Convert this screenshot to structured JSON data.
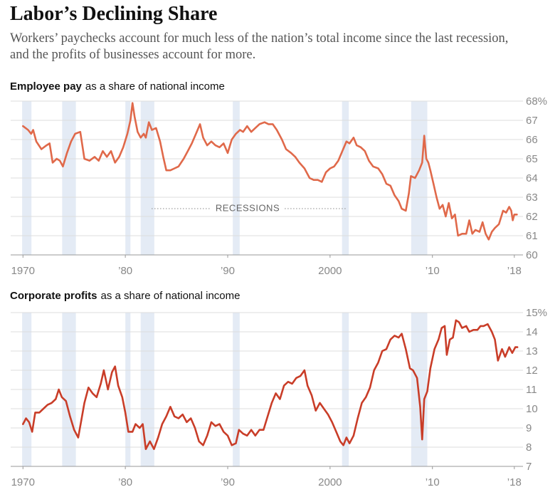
{
  "title": "Labor’s Declining Share",
  "subtitle": "Workers’ paychecks account for much less of the nation’s total income since the last recession, and the profits of businesses account for more.",
  "chart_data": [
    {
      "type": "line",
      "title_bold": "Employee pay",
      "title": "as a share of national income",
      "color": "#e0694a",
      "grid": true,
      "annotation": "RECESSIONS",
      "xlim": [
        1968.8,
        2018.5
      ],
      "ylim": [
        60,
        68
      ],
      "xticks": [
        1970,
        {
          "value": 1980,
          "label": "’80"
        },
        {
          "value": 1990,
          "label": "’90"
        },
        2000,
        {
          "value": 2010,
          "label": "’10"
        },
        {
          "value": 2018,
          "label": "’18"
        }
      ],
      "yticks": [
        60,
        61,
        62,
        63,
        64,
        65,
        66,
        67,
        {
          "value": 68,
          "label": "68%"
        }
      ],
      "recessions": [
        [
          1969.92,
          1970.83
        ],
        [
          1973.83,
          1975.17
        ],
        [
          1980.0,
          1980.5
        ],
        [
          1981.5,
          1982.83
        ],
        [
          1990.5,
          1991.17
        ],
        [
          2001.17,
          2001.83
        ],
        [
          2007.92,
          2009.5
        ]
      ],
      "x": [
        1970.0,
        1970.5,
        1970.8,
        1971.0,
        1971.3,
        1971.8,
        1972.3,
        1972.6,
        1972.9,
        1973.3,
        1973.6,
        1973.9,
        1974.3,
        1974.7,
        1975.1,
        1975.6,
        1976.0,
        1976.5,
        1977.0,
        1977.4,
        1977.8,
        1978.2,
        1978.6,
        1979.0,
        1979.4,
        1979.8,
        1980.2,
        1980.5,
        1980.7,
        1980.9,
        1981.2,
        1981.5,
        1981.8,
        1982.0,
        1982.3,
        1982.6,
        1983.0,
        1983.4,
        1983.7,
        1984.0,
        1984.4,
        1984.8,
        1985.2,
        1985.7,
        1986.1,
        1986.5,
        1986.9,
        1987.3,
        1987.6,
        1988.0,
        1988.4,
        1988.8,
        1989.2,
        1989.6,
        1990.0,
        1990.4,
        1990.8,
        1991.2,
        1991.5,
        1991.9,
        1992.3,
        1992.7,
        1993.1,
        1993.6,
        1994.0,
        1994.4,
        1994.8,
        1995.3,
        1995.7,
        1996.2,
        1996.6,
        1997.0,
        1997.5,
        1998.0,
        1998.4,
        1998.8,
        1999.2,
        1999.6,
        2000.0,
        2000.4,
        2000.8,
        2001.2,
        2001.6,
        2001.9,
        2002.3,
        2002.6,
        2003.0,
        2003.4,
        2003.8,
        2004.2,
        2004.7,
        2005.1,
        2005.5,
        2005.9,
        2006.3,
        2006.7,
        2007.0,
        2007.4,
        2007.7,
        2007.9,
        2008.3,
        2008.7,
        2009.0,
        2009.2,
        2009.4,
        2009.6,
        2009.8,
        2010.1,
        2010.4,
        2010.7,
        2011.0,
        2011.3,
        2011.6,
        2011.9,
        2012.2,
        2012.5,
        2012.9,
        2013.3,
        2013.6,
        2013.9,
        2014.2,
        2014.6,
        2014.9,
        2015.2,
        2015.5,
        2015.8,
        2016.1,
        2016.5,
        2016.9,
        2017.2,
        2017.5,
        2017.7,
        2017.85,
        2018.0,
        2018.25
      ],
      "values": [
        66.7,
        66.5,
        66.3,
        66.5,
        65.9,
        65.5,
        65.7,
        65.8,
        64.8,
        65.0,
        64.9,
        64.6,
        65.3,
        65.9,
        66.3,
        66.4,
        65.0,
        64.9,
        65.1,
        64.9,
        65.4,
        65.1,
        65.4,
        64.8,
        65.1,
        65.6,
        66.3,
        67.0,
        67.9,
        67.2,
        66.4,
        66.1,
        66.3,
        66.1,
        66.9,
        66.5,
        66.6,
        65.9,
        65.1,
        64.4,
        64.4,
        64.5,
        64.6,
        65.0,
        65.4,
        65.8,
        66.3,
        66.8,
        66.1,
        65.7,
        65.9,
        65.7,
        65.6,
        65.8,
        65.3,
        66.0,
        66.3,
        66.5,
        66.4,
        66.7,
        66.4,
        66.6,
        66.8,
        66.9,
        66.8,
        66.8,
        66.5,
        66.0,
        65.5,
        65.3,
        65.1,
        64.8,
        64.5,
        64.0,
        63.9,
        63.9,
        63.8,
        64.3,
        64.5,
        64.6,
        64.9,
        65.4,
        65.9,
        65.8,
        66.1,
        65.7,
        65.6,
        65.4,
        64.9,
        64.6,
        64.5,
        64.2,
        63.7,
        63.6,
        63.1,
        62.8,
        62.4,
        62.3,
        63.2,
        64.1,
        64.0,
        64.4,
        64.8,
        66.2,
        65.0,
        64.8,
        64.4,
        63.7,
        63.0,
        62.4,
        62.6,
        62.0,
        62.7,
        61.9,
        62.1,
        61.0,
        61.1,
        61.1,
        61.8,
        61.1,
        61.3,
        61.2,
        61.7,
        61.1,
        60.8,
        61.2,
        61.4,
        61.6,
        62.3,
        62.2,
        62.5,
        62.3,
        61.8,
        62.1,
        62.1
      ]
    },
    {
      "type": "line",
      "title_bold": "Corporate profits",
      "title": "as a share of national income",
      "color": "#c93d28",
      "grid": true,
      "xlim": [
        1968.8,
        2018.5
      ],
      "ylim": [
        7,
        15
      ],
      "xticks": [
        1970,
        {
          "value": 1980,
          "label": "’80"
        },
        {
          "value": 1990,
          "label": "’90"
        },
        2000,
        {
          "value": 2010,
          "label": "’10"
        },
        {
          "value": 2018,
          "label": "’18"
        }
      ],
      "yticks": [
        7,
        8,
        9,
        10,
        11,
        12,
        13,
        14,
        {
          "value": 15,
          "label": "15%"
        }
      ],
      "recessions": [
        [
          1969.92,
          1970.83
        ],
        [
          1973.83,
          1975.17
        ],
        [
          1980.0,
          1980.5
        ],
        [
          1981.5,
          1982.83
        ],
        [
          1990.5,
          1991.17
        ],
        [
          2001.17,
          2001.83
        ],
        [
          2007.92,
          2009.5
        ]
      ],
      "x": [
        1970.0,
        1970.3,
        1970.6,
        1970.9,
        1971.2,
        1971.6,
        1972.0,
        1972.4,
        1972.8,
        1973.2,
        1973.5,
        1973.8,
        1974.2,
        1974.6,
        1975.0,
        1975.4,
        1975.7,
        1976.0,
        1976.4,
        1976.8,
        1977.2,
        1977.6,
        1977.9,
        1978.3,
        1978.7,
        1979.0,
        1979.3,
        1979.7,
        1980.0,
        1980.3,
        1980.7,
        1981.0,
        1981.4,
        1981.7,
        1982.0,
        1982.4,
        1982.8,
        1983.2,
        1983.6,
        1984.0,
        1984.4,
        1984.8,
        1985.2,
        1985.6,
        1986.0,
        1986.4,
        1986.8,
        1987.2,
        1987.6,
        1988.0,
        1988.4,
        1988.8,
        1989.2,
        1989.6,
        1990.0,
        1990.4,
        1990.8,
        1991.1,
        1991.5,
        1991.9,
        1992.3,
        1992.7,
        1993.1,
        1993.5,
        1993.9,
        1994.3,
        1994.7,
        1995.1,
        1995.5,
        1995.9,
        1996.3,
        1996.7,
        1997.1,
        1997.5,
        1997.8,
        1998.2,
        1998.6,
        1999.0,
        1999.4,
        1999.8,
        2000.2,
        2000.6,
        2001.0,
        2001.3,
        2001.6,
        2001.9,
        2002.3,
        2002.7,
        2003.1,
        2003.5,
        2003.9,
        2004.3,
        2004.7,
        2005.1,
        2005.5,
        2005.9,
        2006.3,
        2006.7,
        2007.0,
        2007.4,
        2007.8,
        2008.1,
        2008.5,
        2008.8,
        2009.0,
        2009.2,
        2009.5,
        2009.8,
        2010.2,
        2010.6,
        2010.9,
        2011.2,
        2011.4,
        2011.7,
        2012.0,
        2012.3,
        2012.6,
        2012.9,
        2013.3,
        2013.6,
        2014.0,
        2014.4,
        2014.7,
        2015.0,
        2015.4,
        2015.8,
        2016.1,
        2016.4,
        2016.8,
        2017.1,
        2017.5,
        2017.8,
        2018.1,
        2018.3
      ],
      "values": [
        9.2,
        9.5,
        9.3,
        8.8,
        9.8,
        9.8,
        10.0,
        10.2,
        10.3,
        10.5,
        11.0,
        10.6,
        10.4,
        9.6,
        8.9,
        8.5,
        9.4,
        10.3,
        11.1,
        10.8,
        10.6,
        11.3,
        12.0,
        11.0,
        11.9,
        12.2,
        11.2,
        10.6,
        9.8,
        8.8,
        8.8,
        9.2,
        9.0,
        9.2,
        7.9,
        8.3,
        7.9,
        8.5,
        9.2,
        9.6,
        10.1,
        9.6,
        9.5,
        9.7,
        9.3,
        9.5,
        9.0,
        8.3,
        8.1,
        8.6,
        9.3,
        9.1,
        9.2,
        8.8,
        8.6,
        8.1,
        8.2,
        8.9,
        8.7,
        8.6,
        8.9,
        8.6,
        8.9,
        8.9,
        9.6,
        10.3,
        10.8,
        10.5,
        11.2,
        11.4,
        11.3,
        11.6,
        11.7,
        12.0,
        11.2,
        10.7,
        9.9,
        10.3,
        10.0,
        9.7,
        9.3,
        8.8,
        8.3,
        8.1,
        8.5,
        8.2,
        8.6,
        9.5,
        10.3,
        10.6,
        11.1,
        12.0,
        12.4,
        13.0,
        13.1,
        13.6,
        13.8,
        13.7,
        13.9,
        13.1,
        12.1,
        12.0,
        11.6,
        10.1,
        8.4,
        10.5,
        10.9,
        12.1,
        13.1,
        13.6,
        14.2,
        14.3,
        12.8,
        13.6,
        13.7,
        14.6,
        14.5,
        14.2,
        14.3,
        14.0,
        14.1,
        14.1,
        14.3,
        14.3,
        14.4,
        14.0,
        13.6,
        12.5,
        13.1,
        12.7,
        13.2,
        12.9,
        13.2,
        13.2
      ]
    }
  ]
}
